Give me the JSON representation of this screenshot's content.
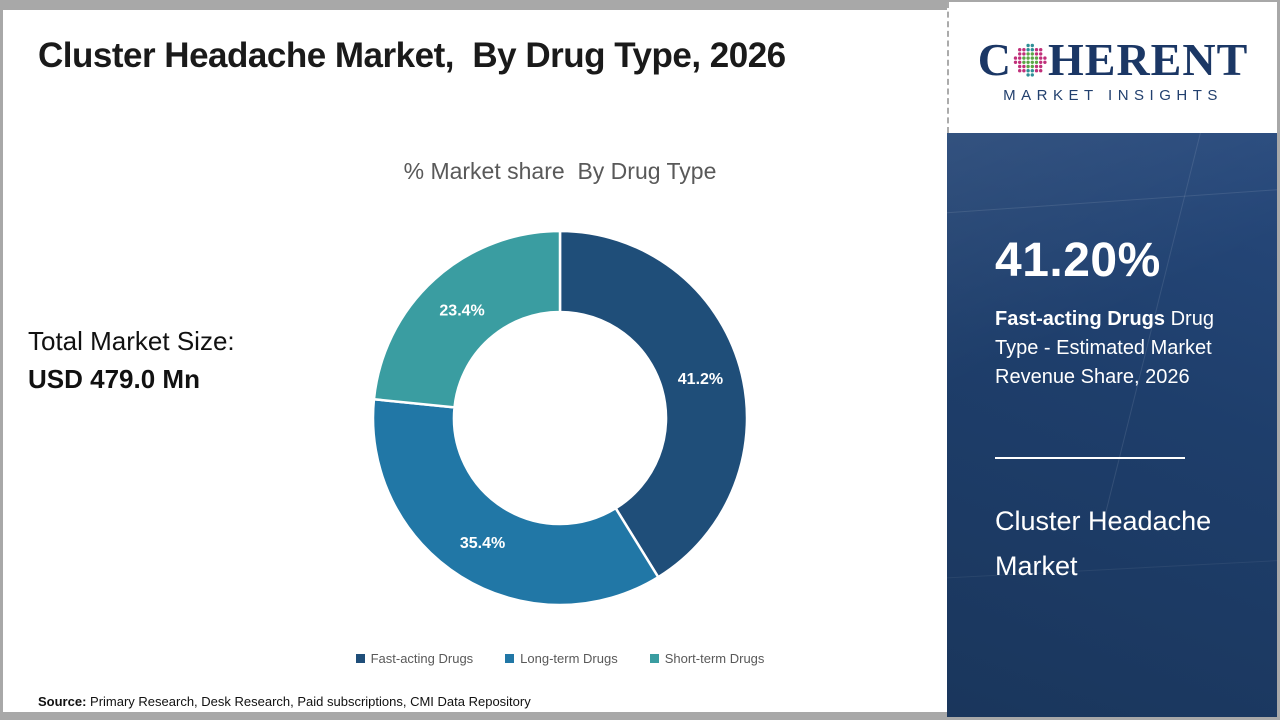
{
  "header": {
    "title": "Cluster Headache Market,  By Drug Type, 2026"
  },
  "logo": {
    "brand_prefix": "C",
    "brand_suffix": "HERENT",
    "brand_sub": "MARKET INSIGHTS",
    "globe_icon": "dotted-globe",
    "globe_colors": {
      "inner": "#5ba646",
      "outer": "#c0307a",
      "poles": "#2e8f96"
    }
  },
  "chart_data": {
    "type": "pie",
    "donut": true,
    "title": "% Market share  By Drug Type",
    "labels": [
      "Fast-acting Drugs",
      "Long-term Drugs",
      "Short-term Drugs"
    ],
    "values": [
      41.2,
      35.4,
      23.4
    ],
    "value_labels": [
      "41.2%",
      "35.4%",
      "23.4%"
    ],
    "colors": [
      "#1F4E79",
      "#2177A6",
      "#3A9DA1"
    ],
    "start_angle_deg": 0,
    "inner_radius_ratio": 0.567,
    "legend_position": "bottom"
  },
  "left_panel": {
    "total_label": "Total Market Size:",
    "total_value": "USD 479.0 Mn"
  },
  "sidebar": {
    "stat_value": "41.20%",
    "stat_bold": "Fast-acting Drugs",
    "stat_rest": " Drug Type - Estimated Market Revenue Share, 2026",
    "market_name": "Cluster Headache Market",
    "navy_color": "#1e3e6b"
  },
  "footer": {
    "source_label": "Source:",
    "source_text": " Primary Research, Desk Research, Paid subscriptions, CMI Data Repository"
  }
}
